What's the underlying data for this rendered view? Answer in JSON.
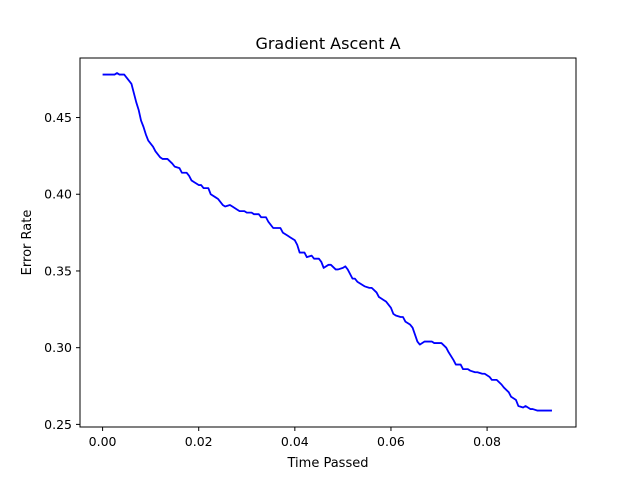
{
  "chart_data": {
    "type": "line",
    "title": "Gradient Ascent A",
    "xlabel": "Time Passed",
    "ylabel": "Error Rate",
    "xlim": [
      -0.0047,
      0.0985
    ],
    "ylim": [
      0.2483,
      0.4888
    ],
    "xticks": [
      {
        "value": 0.0,
        "label": "0.00"
      },
      {
        "value": 0.02,
        "label": "0.02"
      },
      {
        "value": 0.04,
        "label": "0.04"
      },
      {
        "value": 0.06,
        "label": "0.06"
      },
      {
        "value": 0.08,
        "label": "0.08"
      }
    ],
    "yticks": [
      {
        "value": 0.25,
        "label": "0.25"
      },
      {
        "value": 0.3,
        "label": "0.30"
      },
      {
        "value": 0.35,
        "label": "0.35"
      },
      {
        "value": 0.4,
        "label": "0.40"
      },
      {
        "value": 0.45,
        "label": "0.45"
      }
    ],
    "grid": false,
    "series": [
      {
        "color": "#0000ff",
        "x": [
          0.0,
          0.0025,
          0.003,
          0.0035,
          0.0045,
          0.0055,
          0.006,
          0.007,
          0.0075,
          0.008,
          0.0085,
          0.009,
          0.0095,
          0.0105,
          0.011,
          0.012,
          0.0125,
          0.0135,
          0.0145,
          0.015,
          0.016,
          0.0165,
          0.0175,
          0.018,
          0.0185,
          0.019,
          0.02,
          0.0205,
          0.021,
          0.022,
          0.0225,
          0.0235,
          0.024,
          0.025,
          0.0255,
          0.0265,
          0.027,
          0.028,
          0.0285,
          0.0295,
          0.03,
          0.031,
          0.0315,
          0.0325,
          0.033,
          0.034,
          0.0345,
          0.0355,
          0.036,
          0.037,
          0.0375,
          0.0385,
          0.039,
          0.04,
          0.0405,
          0.041,
          0.042,
          0.0425,
          0.0435,
          0.044,
          0.045,
          0.0455,
          0.046,
          0.047,
          0.0475,
          0.0485,
          0.049,
          0.05,
          0.0505,
          0.051,
          0.052,
          0.0525,
          0.053,
          0.054,
          0.0545,
          0.0555,
          0.056,
          0.057,
          0.0575,
          0.0585,
          0.059,
          0.06,
          0.0605,
          0.061,
          0.062,
          0.0625,
          0.063,
          0.064,
          0.0645,
          0.0655,
          0.066,
          0.067,
          0.0675,
          0.0685,
          0.069,
          0.07,
          0.0705,
          0.0715,
          0.072,
          0.073,
          0.0735,
          0.0745,
          0.075,
          0.076,
          0.0765,
          0.0775,
          0.078,
          0.079,
          0.0795,
          0.0805,
          0.081,
          0.0815,
          0.082,
          0.083,
          0.0835,
          0.0845,
          0.085,
          0.086,
          0.0865,
          0.0875,
          0.088,
          0.089,
          0.0895,
          0.0905,
          0.091,
          0.092,
          0.0935
        ],
        "y": [
          0.478,
          0.478,
          0.479,
          0.478,
          0.478,
          0.474,
          0.472,
          0.46,
          0.455,
          0.448,
          0.444,
          0.439,
          0.435,
          0.431,
          0.428,
          0.424,
          0.423,
          0.423,
          0.42,
          0.418,
          0.417,
          0.414,
          0.414,
          0.412,
          0.409,
          0.408,
          0.406,
          0.406,
          0.404,
          0.404,
          0.4,
          0.398,
          0.397,
          0.393,
          0.392,
          0.393,
          0.392,
          0.39,
          0.389,
          0.389,
          0.388,
          0.388,
          0.387,
          0.387,
          0.385,
          0.385,
          0.382,
          0.378,
          0.378,
          0.378,
          0.375,
          0.373,
          0.372,
          0.37,
          0.367,
          0.362,
          0.362,
          0.359,
          0.36,
          0.358,
          0.358,
          0.356,
          0.352,
          0.354,
          0.354,
          0.351,
          0.351,
          0.352,
          0.353,
          0.351,
          0.345,
          0.345,
          0.343,
          0.341,
          0.34,
          0.339,
          0.339,
          0.336,
          0.333,
          0.331,
          0.33,
          0.326,
          0.322,
          0.321,
          0.32,
          0.32,
          0.317,
          0.315,
          0.313,
          0.304,
          0.302,
          0.304,
          0.304,
          0.304,
          0.303,
          0.303,
          0.303,
          0.3,
          0.297,
          0.292,
          0.289,
          0.289,
          0.286,
          0.286,
          0.285,
          0.284,
          0.284,
          0.283,
          0.283,
          0.281,
          0.279,
          0.279,
          0.279,
          0.276,
          0.274,
          0.271,
          0.268,
          0.266,
          0.262,
          0.261,
          0.262,
          0.26,
          0.26,
          0.259,
          0.259,
          0.259,
          0.259
        ]
      }
    ]
  }
}
